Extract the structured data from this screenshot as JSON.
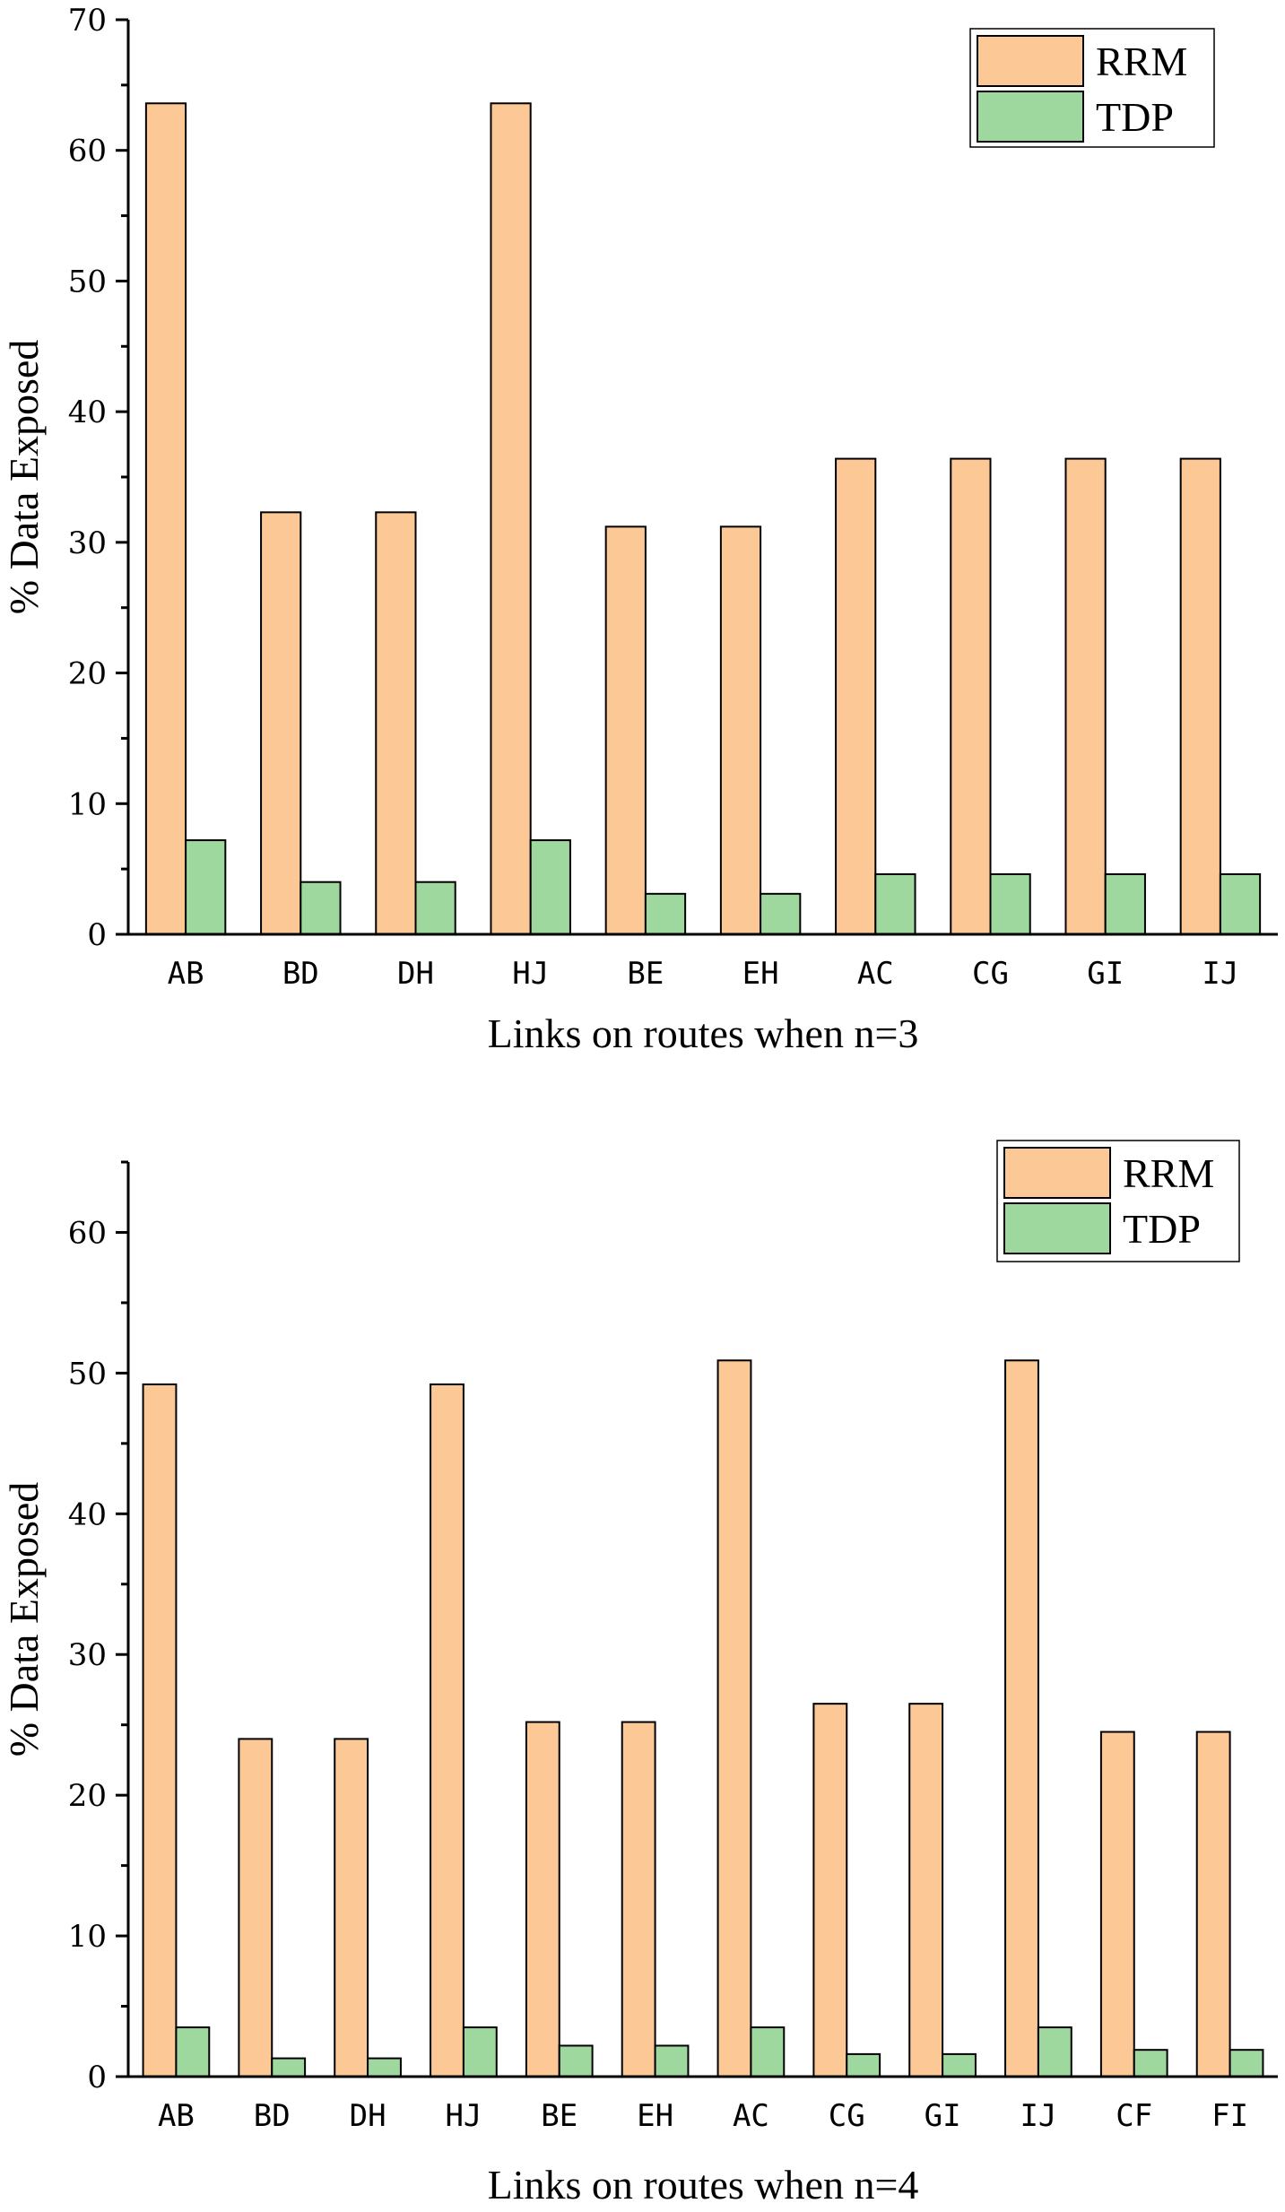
{
  "chart_data": [
    {
      "type": "bar",
      "xlabel": "Links on routes when n=3",
      "ylabel": "% Data Exposed",
      "ylim": [
        0,
        70
      ],
      "yticks": [
        0,
        10,
        20,
        30,
        40,
        50,
        60,
        70
      ],
      "legend_position": "top-right",
      "categories": [
        "AB",
        "BD",
        "DH",
        "HJ",
        "BE",
        "EH",
        "AC",
        "CG",
        "GI",
        "IJ"
      ],
      "series": [
        {
          "name": "RRM",
          "color": "#FCC896",
          "values": [
            63.6,
            32.3,
            32.3,
            63.6,
            31.2,
            31.2,
            36.4,
            36.4,
            36.4,
            36.4
          ]
        },
        {
          "name": "TDP",
          "color": "#9ED89E",
          "values": [
            7.2,
            4.0,
            4.0,
            7.2,
            3.1,
            3.1,
            4.6,
            4.6,
            4.6,
            4.6
          ]
        }
      ]
    },
    {
      "type": "bar",
      "xlabel": "Links on routes when n=4",
      "ylabel": "% Data Exposed",
      "ylim": [
        0,
        65
      ],
      "yticks": [
        0,
        10,
        20,
        30,
        40,
        50,
        60
      ],
      "legend_position": "top-right",
      "categories": [
        "AB",
        "BD",
        "DH",
        "HJ",
        "BE",
        "EH",
        "AC",
        "CG",
        "GI",
        "IJ",
        "CF",
        "FI"
      ],
      "series": [
        {
          "name": "RRM",
          "color": "#FCC896",
          "values": [
            49.2,
            24.0,
            24.0,
            49.2,
            25.2,
            25.2,
            50.9,
            26.5,
            26.5,
            50.9,
            24.5,
            24.5
          ]
        },
        {
          "name": "TDP",
          "color": "#9ED89E",
          "values": [
            3.5,
            1.3,
            1.3,
            3.5,
            2.2,
            2.2,
            3.5,
            1.6,
            1.6,
            3.5,
            1.9,
            1.9
          ]
        }
      ]
    }
  ]
}
